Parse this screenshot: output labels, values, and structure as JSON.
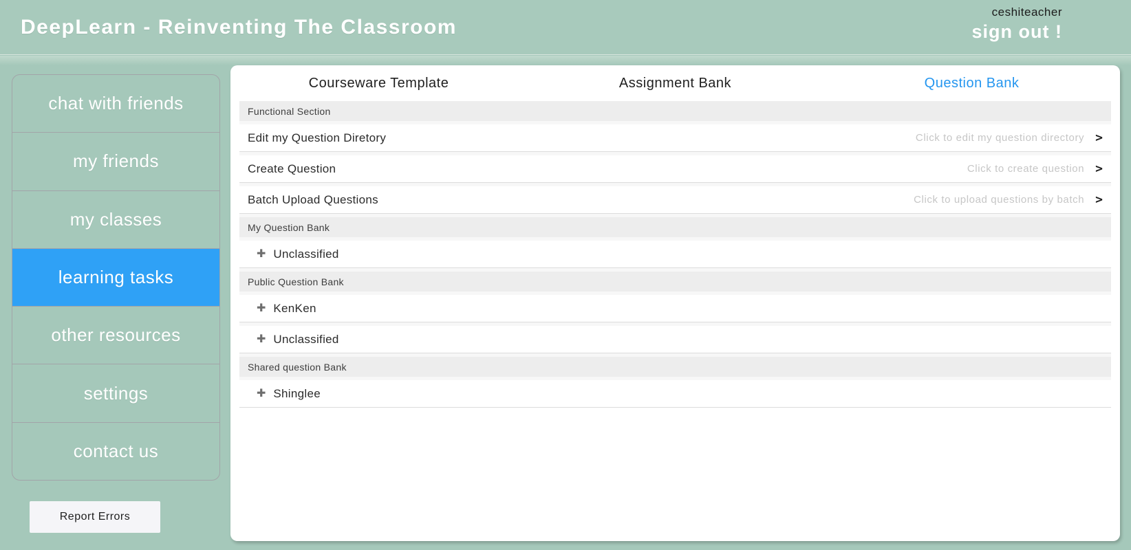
{
  "header": {
    "title": "DeepLearn - Reinventing The Classroom",
    "username": "ceshiteacher",
    "sign_out_label": "sign out !"
  },
  "sidebar": {
    "items": [
      {
        "label": "chat with friends",
        "active": false
      },
      {
        "label": "my friends",
        "active": false
      },
      {
        "label": "my classes",
        "active": false
      },
      {
        "label": "learning tasks",
        "active": true
      },
      {
        "label": "other resources",
        "active": false
      },
      {
        "label": "settings",
        "active": false
      },
      {
        "label": "contact us",
        "active": false
      }
    ],
    "report_errors_label": "Report Errors"
  },
  "main": {
    "tabs": [
      {
        "label": "Courseware Template",
        "active": false
      },
      {
        "label": "Assignment Bank",
        "active": false
      },
      {
        "label": "Question Bank",
        "active": true
      }
    ],
    "rows": [
      {
        "type": "section",
        "label": "Functional Section"
      },
      {
        "type": "link",
        "label": "Edit my Question Diretory",
        "hint": "Click to edit my question directory",
        "chevron": ">"
      },
      {
        "type": "link",
        "label": "Create Question",
        "hint": "Click to create question",
        "chevron": ">"
      },
      {
        "type": "link",
        "label": "Batch Upload Questions",
        "hint": "Click to upload questions by batch",
        "chevron": ">"
      },
      {
        "type": "section",
        "label": "My Question Bank"
      },
      {
        "type": "folder",
        "icon": "plus-icon",
        "icon_glyph": "✚",
        "label": "Unclassified"
      },
      {
        "type": "section",
        "label": "Public Question Bank"
      },
      {
        "type": "folder",
        "icon": "plus-icon",
        "icon_glyph": "✚",
        "label": "KenKen"
      },
      {
        "type": "folder",
        "icon": "plus-icon",
        "icon_glyph": "✚",
        "label": "Unclassified"
      },
      {
        "type": "section",
        "label": "Shared question Bank"
      },
      {
        "type": "folder",
        "icon": "plus-icon",
        "icon_glyph": "✚",
        "label": "Shinglee"
      }
    ]
  },
  "colors": {
    "background_green": "#a5c8ba",
    "header_green": "#a8cabc",
    "active_blue": "#2fa1f6",
    "tab_active_blue": "#2596ef",
    "section_bar_gray": "#ededed",
    "hint_gray": "#c6c6c6",
    "border_gray": "#a2a4a8"
  }
}
